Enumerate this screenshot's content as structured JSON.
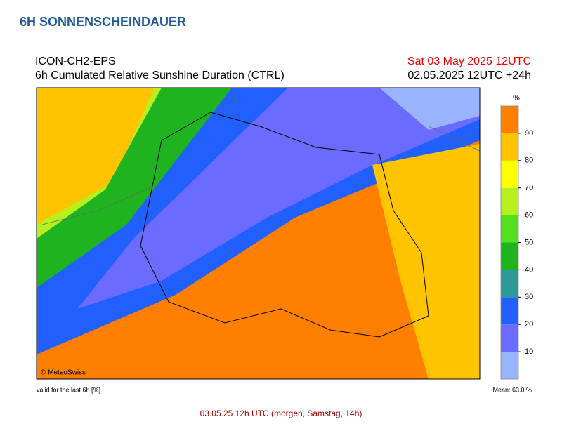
{
  "header": {
    "title": "6H SONNENSCHEINDAUER"
  },
  "map": {
    "model": "ICON-CH2-EPS",
    "product": "6h Cumulated Relative Sunshine Duration (CTRL)",
    "valid_time": "Sat 03 May 2025 12UTC",
    "run_time": "02.05.2025 12UTC +24h",
    "credit": "© MeteoSwiss",
    "note": "valid for the last 6h [%]",
    "mean": "Mean: 63.0 %"
  },
  "colorbar": {
    "unit": "%",
    "lim": [
      0,
      100
    ],
    "ticks": [
      10,
      20,
      30,
      40,
      50,
      60,
      70,
      80,
      90
    ],
    "colors": [
      "#99b3ff",
      "#6b6bff",
      "#2160ff",
      "#2e9999",
      "#1fb31f",
      "#55e01f",
      "#b8f01f",
      "#ffff00",
      "#ffc400",
      "#ff8000"
    ]
  },
  "footer": {
    "caption": "03.05.25 12h UTC (morgen, Samstag, 14h)"
  }
}
